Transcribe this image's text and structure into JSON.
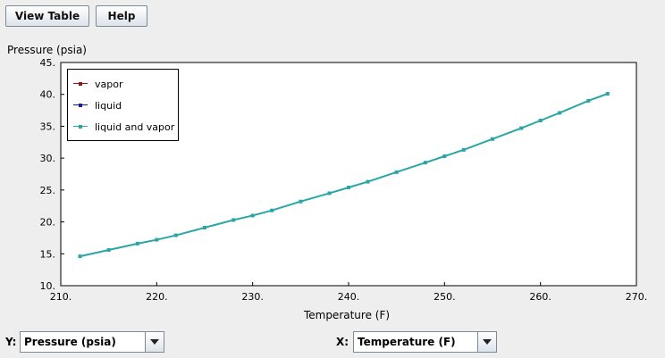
{
  "toolbar": {
    "view_table_label": "View Table",
    "help_label": "Help"
  },
  "selectors": {
    "y_label": "Y:",
    "y_value": "Pressure (psia)",
    "x_label": "X:",
    "x_value": "Temperature (F)"
  },
  "colors": {
    "vapor": "#8b1a1a",
    "liquid": "#1a1a8b",
    "liquid_and_vapor": "#2aa6a6"
  },
  "chart_data": {
    "type": "line",
    "title": "",
    "xlabel": "Temperature (F)",
    "ylabel": "Pressure (psia)",
    "xlim": [
      210,
      270
    ],
    "ylim": [
      10,
      45
    ],
    "grid": false,
    "legend_position": "top-left",
    "xticks": [
      "210.",
      "220.",
      "230.",
      "240.",
      "250.",
      "260.",
      "270."
    ],
    "yticks": [
      "10.",
      "15.",
      "20.",
      "25.",
      "30.",
      "35.",
      "40.",
      "45."
    ],
    "series": [
      {
        "name": "vapor",
        "x": [],
        "y": []
      },
      {
        "name": "liquid",
        "x": [],
        "y": []
      },
      {
        "name": "liquid and vapor",
        "x": [
          212,
          215,
          218,
          220,
          222,
          225,
          228,
          230,
          232,
          235,
          238,
          240,
          242,
          245,
          248,
          250,
          252,
          255,
          258,
          260,
          262,
          265,
          267
        ],
        "y": [
          14.6,
          15.6,
          16.6,
          17.2,
          17.9,
          19.1,
          20.3,
          21.0,
          21.8,
          23.2,
          24.5,
          25.4,
          26.3,
          27.8,
          29.3,
          30.3,
          31.3,
          33.0,
          34.7,
          35.9,
          37.1,
          39.0,
          40.1
        ]
      }
    ]
  }
}
